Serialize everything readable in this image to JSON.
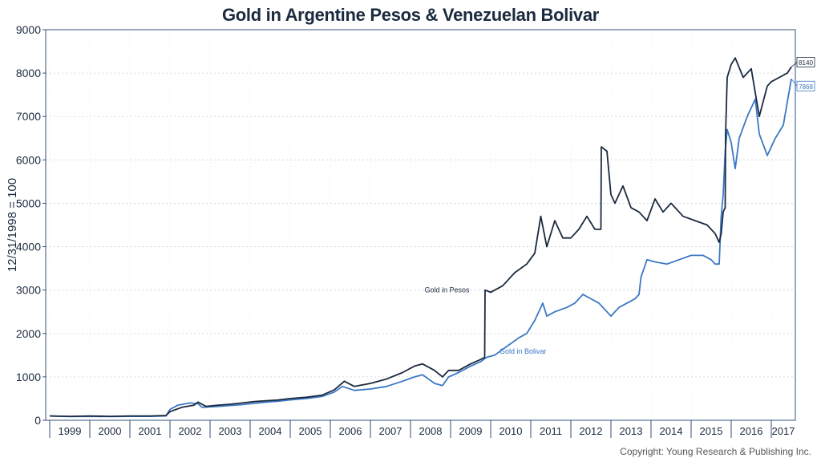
{
  "chart_data": {
    "type": "line",
    "title": "Gold in Argentine Pesos & Venezuelan Bolivar",
    "ylabel": "12/31/1998 = 100",
    "xlabel": "",
    "ylim": [
      0,
      9000
    ],
    "xlim": [
      1998.9,
      2017.6
    ],
    "yticks": [
      0,
      1000,
      2000,
      3000,
      4000,
      5000,
      6000,
      7000,
      8000,
      9000
    ],
    "xtick_labels": [
      "1999",
      "2000",
      "2001",
      "2002",
      "2003",
      "2004",
      "2005",
      "2006",
      "2007",
      "2008",
      "2009",
      "2010",
      "2011",
      "2012",
      "2013",
      "2014",
      "2015",
      "2016",
      "2017"
    ],
    "grid": true,
    "series": [
      {
        "name": "Gold in Pesos",
        "color": "#1b2a3e",
        "end_label": "8140",
        "x": [
          1999.0,
          1999.5,
          2000.0,
          2000.5,
          2001.0,
          2001.5,
          2001.9,
          2002.0,
          2002.3,
          2002.6,
          2002.7,
          2002.9,
          2003.2,
          2003.5,
          2003.8,
          2004.1,
          2004.4,
          2004.7,
          2005.0,
          2005.4,
          2005.8,
          2006.1,
          2006.35,
          2006.6,
          2007.0,
          2007.4,
          2007.8,
          2008.1,
          2008.3,
          2008.6,
          2008.8,
          2008.95,
          2009.2,
          2009.5,
          2009.75,
          2009.85,
          2009.86,
          2010.0,
          2010.3,
          2010.6,
          2010.9,
          2011.1,
          2011.25,
          2011.4,
          2011.6,
          2011.8,
          2012.0,
          2012.2,
          2012.4,
          2012.6,
          2012.75,
          2012.76,
          2012.9,
          2013.0,
          2013.1,
          2013.3,
          2013.5,
          2013.7,
          2013.9,
          2014.1,
          2014.3,
          2014.5,
          2014.8,
          2015.1,
          2015.4,
          2015.6,
          2015.7,
          2015.75,
          2015.8,
          2015.85,
          2015.86,
          2015.9,
          2016.0,
          2016.1,
          2016.3,
          2016.5,
          2016.7,
          2016.9,
          2017.0,
          2017.2,
          2017.4,
          2017.5
        ],
        "y": [
          100,
          90,
          100,
          90,
          100,
          100,
          110,
          200,
          300,
          350,
          420,
          320,
          350,
          370,
          400,
          430,
          450,
          470,
          500,
          530,
          580,
          700,
          900,
          780,
          850,
          950,
          1100,
          1250,
          1300,
          1150,
          1000,
          1150,
          1150,
          1300,
          1400,
          1450,
          3000,
          2950,
          3100,
          3400,
          3600,
          3850,
          4700,
          4000,
          4600,
          4200,
          4200,
          4400,
          4700,
          4400,
          4400,
          6300,
          6200,
          5200,
          5000,
          5400,
          4900,
          4800,
          4600,
          5100,
          4800,
          5000,
          4700,
          4600,
          4500,
          4300,
          4100,
          4300,
          4800,
          4900,
          6600,
          7900,
          8200,
          8350,
          7900,
          8100,
          7000,
          7700,
          7800,
          7900,
          8000,
          8140
        ]
      },
      {
        "name": "Gold in Bolivar",
        "color": "#3b78c4",
        "end_label": "7868",
        "x": [
          1999.0,
          1999.5,
          2000.0,
          2000.5,
          2001.0,
          2001.5,
          2001.9,
          2002.0,
          2002.2,
          2002.5,
          2002.7,
          2002.8,
          2003.2,
          2003.5,
          2003.8,
          2004.1,
          2004.4,
          2004.7,
          2005.0,
          2005.4,
          2005.8,
          2006.1,
          2006.3,
          2006.6,
          2007.0,
          2007.4,
          2007.8,
          2008.1,
          2008.3,
          2008.6,
          2008.8,
          2008.95,
          2009.2,
          2009.5,
          2009.75,
          2009.9,
          2010.1,
          2010.4,
          2010.7,
          2010.9,
          2011.1,
          2011.3,
          2011.4,
          2011.6,
          2011.9,
          2012.1,
          2012.3,
          2012.5,
          2012.7,
          2012.9,
          2013.0,
          2013.2,
          2013.4,
          2013.6,
          2013.7,
          2013.75,
          2013.9,
          2014.1,
          2014.4,
          2014.7,
          2015.0,
          2015.3,
          2015.5,
          2015.6,
          2015.7,
          2015.75,
          2015.8,
          2015.85,
          2015.9,
          2016.0,
          2016.1,
          2016.2,
          2016.4,
          2016.6,
          2016.7,
          2016.9,
          2017.1,
          2017.3,
          2017.5
        ],
        "y": [
          100,
          85,
          90,
          85,
          90,
          90,
          100,
          250,
          350,
          400,
          380,
          300,
          320,
          340,
          360,
          390,
          420,
          440,
          470,
          500,
          550,
          650,
          780,
          690,
          720,
          780,
          900,
          1000,
          1050,
          850,
          800,
          1000,
          1100,
          1250,
          1350,
          1450,
          1500,
          1700,
          1900,
          2000,
          2300,
          2700,
          2400,
          2500,
          2600,
          2700,
          2900,
          2800,
          2700,
          2500,
          2400,
          2600,
          2700,
          2800,
          2900,
          3300,
          3700,
          3650,
          3600,
          3700,
          3800,
          3800,
          3700,
          3600,
          3600,
          4700,
          5200,
          6200,
          6700,
          6400,
          5800,
          6500,
          7000,
          7400,
          6600,
          6100,
          6500,
          6800,
          7868
        ]
      }
    ],
    "annotations": [
      {
        "text": "Gold in Pesos",
        "x": 2009.55,
        "y": 2950,
        "color": "#1b2a3e"
      },
      {
        "text": "Gold in Bolivar",
        "x": 2010.3,
        "y": 1530,
        "color": "#3b78c4"
      }
    ]
  },
  "footer": {
    "copyright": "Copyright: Young Research & Publishing Inc."
  }
}
